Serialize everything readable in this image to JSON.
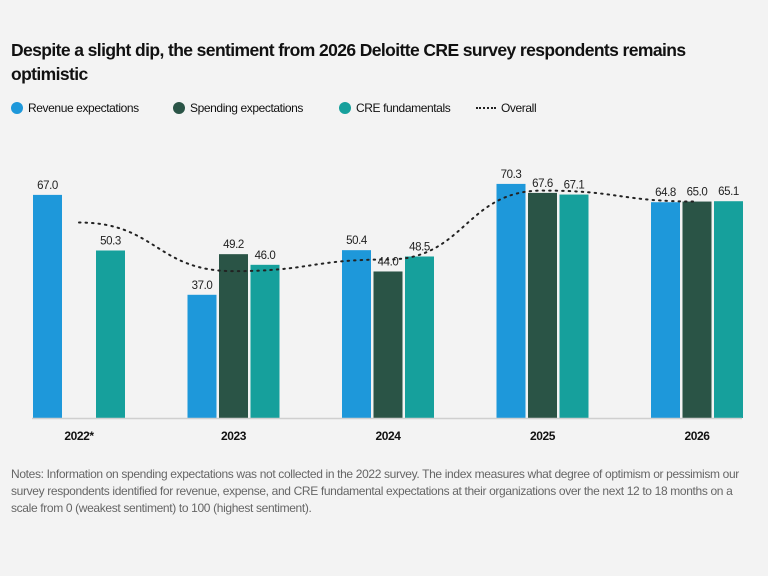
{
  "chart_data": {
    "type": "bar",
    "title": "Despite a slight dip, the sentiment from 2026 Deloitte CRE survey respondents remains optimistic",
    "categories": [
      "2022*",
      "2023",
      "2024",
      "2025",
      "2026"
    ],
    "series": [
      {
        "name": "Revenue expectations",
        "type": "bar",
        "color": "#1E98DA",
        "values": [
          67.0,
          37.0,
          50.4,
          70.3,
          64.8
        ]
      },
      {
        "name": "Spending expectations",
        "type": "bar",
        "color": "#2A5446",
        "values": [
          null,
          49.2,
          44.0,
          67.6,
          65.0
        ]
      },
      {
        "name": "CRE fundamentals",
        "type": "bar",
        "color": "#16A09C",
        "values": [
          50.3,
          46.0,
          48.5,
          67.1,
          65.1
        ]
      },
      {
        "name": "Overall",
        "type": "line",
        "style": "dotted",
        "color": "#222222",
        "values": [
          58.7,
          44.1,
          47.6,
          68.3,
          65.0
        ]
      }
    ],
    "ylim": [
      0,
      75
    ],
    "grid": false,
    "legend": "top-left",
    "data_labels": true
  },
  "notes": "Notes: Information on spending expectations was not collected in the 2022 survey. The index measures what degree of optimism or pessimism our survey respondents identified for revenue, expense, and CRE fundamental expectations at their organizations over the next 12 to 18 months on a scale from 0 (weakest sentiment) to 100 (highest sentiment)."
}
